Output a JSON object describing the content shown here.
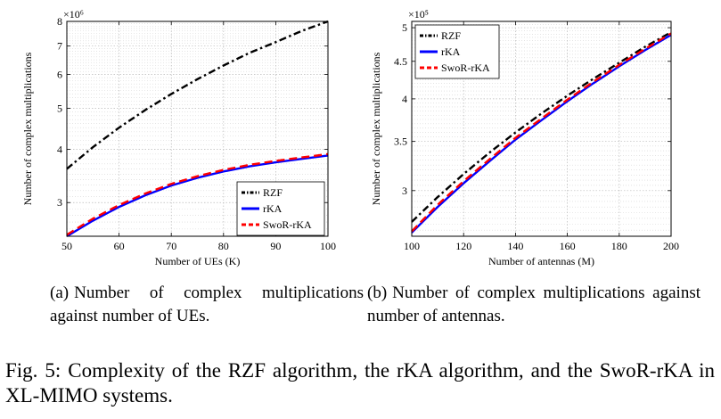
{
  "figure": {
    "label": "Fig. 5:",
    "caption": "Complexity of the RZF algorithm, the rKA algorithm, and the SwoR-rKA in XL-MIMO systems."
  },
  "subcaptions": [
    {
      "label": "(a)",
      "text": "Number of complex multiplications against number of UEs."
    },
    {
      "label": "(b)",
      "text": "Number of complex multiplications against number of antennas."
    }
  ],
  "chart_data": [
    {
      "type": "line",
      "xlabel": "Number of UEs (K)",
      "ylabel": "Number of complex multiplications",
      "y_scale": "log",
      "y_exponent_label": "×10⁶",
      "xlim": [
        50,
        100
      ],
      "ylim": [
        2.5,
        8
      ],
      "x_ticks": [
        50,
        60,
        70,
        80,
        90,
        100
      ],
      "y_ticks": [
        3,
        4,
        5,
        6,
        7,
        8
      ],
      "grid": true,
      "legend_position": "lower-right",
      "x": [
        50,
        55,
        60,
        65,
        70,
        75,
        80,
        85,
        90,
        95,
        100
      ],
      "series": [
        {
          "name": "RZF",
          "color": "#000000",
          "style": "dashdot",
          "values": [
            3.6,
            4.05,
            4.5,
            4.95,
            5.4,
            5.85,
            6.3,
            6.75,
            7.15,
            7.6,
            8.0
          ]
        },
        {
          "name": "rKA",
          "color": "#0000ff",
          "style": "solid",
          "values": [
            2.5,
            2.72,
            2.93,
            3.12,
            3.29,
            3.43,
            3.55,
            3.65,
            3.73,
            3.8,
            3.87
          ]
        },
        {
          "name": "SwoR-rKA",
          "color": "#ff0000",
          "style": "dashed",
          "values": [
            2.52,
            2.75,
            2.96,
            3.15,
            3.32,
            3.46,
            3.58,
            3.68,
            3.76,
            3.83,
            3.9
          ]
        }
      ]
    },
    {
      "type": "line",
      "xlabel": "Number of antennas (M)",
      "ylabel": "Number of complex multiplications",
      "y_scale": "log",
      "y_exponent_label": "×10⁵",
      "xlim": [
        100,
        200
      ],
      "ylim": [
        2.6,
        5.1
      ],
      "x_ticks": [
        100,
        120,
        140,
        160,
        180,
        200
      ],
      "y_ticks": [
        3,
        3.5,
        4,
        4.5,
        5
      ],
      "grid": true,
      "legend_position": "upper-left",
      "x": [
        100,
        110,
        120,
        130,
        140,
        150,
        160,
        170,
        180,
        190,
        200
      ],
      "series": [
        {
          "name": "RZF",
          "color": "#000000",
          "style": "dashdot",
          "values": [
            2.72,
            2.94,
            3.16,
            3.38,
            3.6,
            3.82,
            4.04,
            4.26,
            4.48,
            4.71,
            4.93
          ]
        },
        {
          "name": "rKA",
          "color": "#0000ff",
          "style": "solid",
          "values": [
            2.63,
            2.85,
            3.07,
            3.29,
            3.52,
            3.74,
            3.97,
            4.2,
            4.43,
            4.66,
            4.89
          ]
        },
        {
          "name": "SwoR-rKA",
          "color": "#ff0000",
          "style": "dashed",
          "values": [
            2.64,
            2.87,
            3.09,
            3.31,
            3.54,
            3.76,
            3.99,
            4.22,
            4.45,
            4.68,
            4.91
          ]
        }
      ]
    }
  ]
}
